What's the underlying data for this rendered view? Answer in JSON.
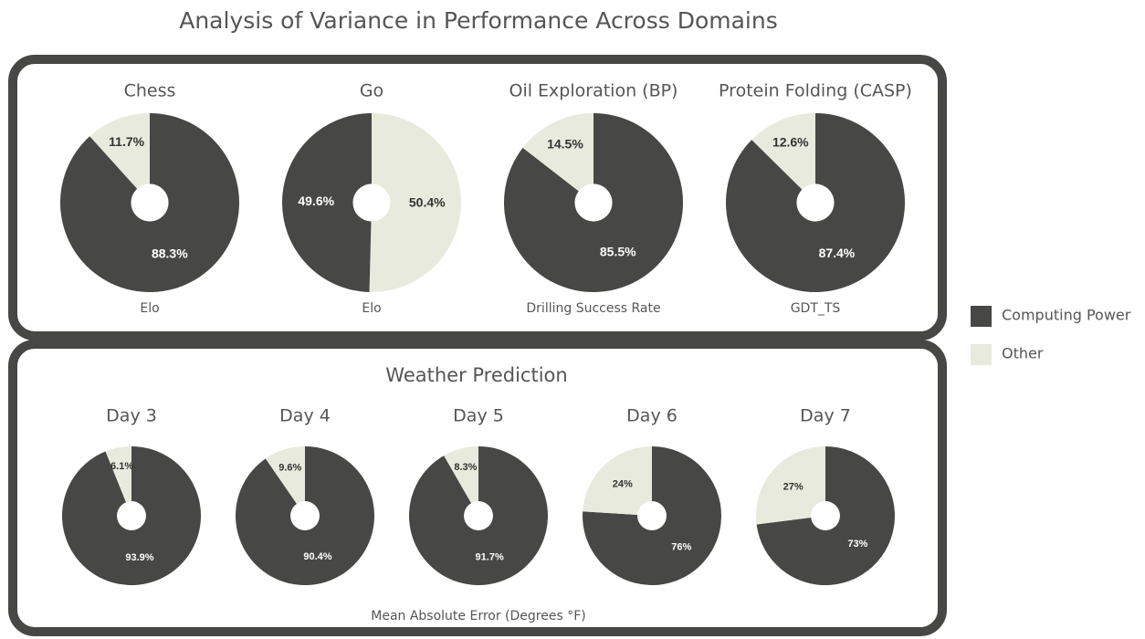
{
  "title": "Analysis of Variance in Performance Across Domains",
  "legend": [
    {
      "name": "Computing Power",
      "color": "#474745"
    },
    {
      "name": "Other",
      "color": "#e8eadd"
    }
  ],
  "weather_panel": {
    "title": "Weather Prediction",
    "xlabel": "Mean Absolute Error (Degrees °F)"
  },
  "chart_data": [
    {
      "type": "pie",
      "title": "Chess",
      "xlabel": "Elo",
      "categories": [
        "Computing Power",
        "Other"
      ],
      "values": [
        88.3,
        11.7
      ],
      "value_labels": [
        "88.3%",
        "11.7%"
      ]
    },
    {
      "type": "pie",
      "title": "Go",
      "xlabel": "Elo",
      "categories": [
        "Other",
        "Computing Power"
      ],
      "values": [
        50.4,
        49.6
      ],
      "value_labels": [
        "50.4%",
        "49.6%"
      ]
    },
    {
      "type": "pie",
      "title": "Oil Exploration (BP)",
      "xlabel": "Drilling Success Rate",
      "categories": [
        "Computing Power",
        "Other"
      ],
      "values": [
        85.5,
        14.5
      ],
      "value_labels": [
        "85.5%",
        "14.5%"
      ]
    },
    {
      "type": "pie",
      "title": "Protein Folding (CASP)",
      "xlabel": "GDT_TS",
      "categories": [
        "Computing Power",
        "Other"
      ],
      "values": [
        87.4,
        12.6
      ],
      "value_labels": [
        "87.4%",
        "12.6%"
      ]
    },
    {
      "type": "pie",
      "title": "Day 3",
      "categories": [
        "Computing Power",
        "Other"
      ],
      "values": [
        93.9,
        6.1
      ],
      "value_labels": [
        "93.9%",
        "6.1%"
      ]
    },
    {
      "type": "pie",
      "title": "Day 4",
      "categories": [
        "Computing Power",
        "Other"
      ],
      "values": [
        90.4,
        9.6
      ],
      "value_labels": [
        "90.4%",
        "9.6%"
      ]
    },
    {
      "type": "pie",
      "title": "Day 5",
      "categories": [
        "Computing Power",
        "Other"
      ],
      "values": [
        91.7,
        8.3
      ],
      "value_labels": [
        "91.7%",
        "8.3%"
      ]
    },
    {
      "type": "pie",
      "title": "Day 6",
      "categories": [
        "Computing Power",
        "Other"
      ],
      "values": [
        76,
        24
      ],
      "value_labels": [
        "76%",
        "24%"
      ]
    },
    {
      "type": "pie",
      "title": "Day 7",
      "categories": [
        "Computing Power",
        "Other"
      ],
      "values": [
        73,
        27
      ],
      "value_labels": [
        "73%",
        "27%"
      ]
    }
  ]
}
